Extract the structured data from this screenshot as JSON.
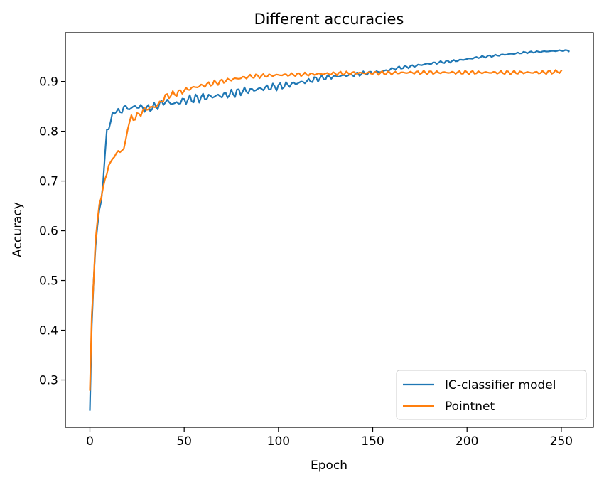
{
  "chart_data": {
    "type": "line",
    "title": "Different accuracies",
    "xlabel": "Epoch",
    "ylabel": "Accuracy",
    "xlim": [
      -13,
      267
    ],
    "ylim": [
      0.205,
      0.998
    ],
    "xticks": [
      0,
      50,
      100,
      150,
      200,
      250
    ],
    "yticks": [
      0.3,
      0.4,
      0.5,
      0.6,
      0.7,
      0.8,
      0.9
    ],
    "xtick_labels": [
      "0",
      "50",
      "100",
      "150",
      "200",
      "250"
    ],
    "ytick_labels": [
      "0.3",
      "0.4",
      "0.5",
      "0.6",
      "0.7",
      "0.8",
      "0.9"
    ],
    "grid": false,
    "legend_position": "lower-right",
    "series": [
      {
        "name": "IC-classifier model",
        "color": "#1f77b4",
        "anchors": [
          [
            0,
            0.24
          ],
          [
            1,
            0.41
          ],
          [
            2,
            0.5
          ],
          [
            3,
            0.57
          ],
          [
            4,
            0.61
          ],
          [
            5,
            0.64
          ],
          [
            6,
            0.66
          ],
          [
            7,
            0.7
          ],
          [
            8,
            0.75
          ],
          [
            9,
            0.8
          ],
          [
            10,
            0.81
          ],
          [
            12,
            0.83
          ],
          [
            14,
            0.845
          ],
          [
            16,
            0.835
          ],
          [
            18,
            0.85
          ],
          [
            20,
            0.845
          ],
          [
            25,
            0.85
          ],
          [
            30,
            0.845
          ],
          [
            35,
            0.85
          ],
          [
            40,
            0.86
          ],
          [
            45,
            0.855
          ],
          [
            50,
            0.862
          ],
          [
            55,
            0.865
          ],
          [
            60,
            0.868
          ],
          [
            65,
            0.87
          ],
          [
            70,
            0.872
          ],
          [
            75,
            0.875
          ],
          [
            80,
            0.88
          ],
          [
            85,
            0.882
          ],
          [
            90,
            0.885
          ],
          [
            95,
            0.888
          ],
          [
            100,
            0.89
          ],
          [
            105,
            0.893
          ],
          [
            110,
            0.897
          ],
          [
            115,
            0.9
          ],
          [
            120,
            0.905
          ],
          [
            125,
            0.908
          ],
          [
            130,
            0.91
          ],
          [
            135,
            0.912
          ],
          [
            140,
            0.914
          ],
          [
            145,
            0.916
          ],
          [
            150,
            0.918
          ],
          [
            155,
            0.92
          ],
          [
            160,
            0.925
          ],
          [
            165,
            0.928
          ],
          [
            170,
            0.93
          ],
          [
            175,
            0.933
          ],
          [
            180,
            0.936
          ],
          [
            185,
            0.938
          ],
          [
            190,
            0.94
          ],
          [
            195,
            0.942
          ],
          [
            200,
            0.945
          ],
          [
            205,
            0.948
          ],
          [
            210,
            0.95
          ],
          [
            215,
            0.952
          ],
          [
            220,
            0.954
          ],
          [
            225,
            0.956
          ],
          [
            230,
            0.958
          ],
          [
            235,
            0.959
          ],
          [
            240,
            0.96
          ],
          [
            245,
            0.961
          ],
          [
            250,
            0.962
          ],
          [
            254,
            0.962
          ]
        ],
        "noise_amp": [
          [
            0,
            0
          ],
          [
            12,
            0.008
          ],
          [
            60,
            0.01
          ],
          [
            100,
            0.008
          ],
          [
            150,
            0.004
          ],
          [
            200,
            0.0025
          ],
          [
            254,
            0.0015
          ]
        ],
        "x_max": 254
      },
      {
        "name": "Pointnet",
        "color": "#ff7f0e",
        "anchors": [
          [
            0,
            0.28
          ],
          [
            1,
            0.43
          ],
          [
            2,
            0.5
          ],
          [
            3,
            0.58
          ],
          [
            4,
            0.62
          ],
          [
            5,
            0.655
          ],
          [
            6,
            0.665
          ],
          [
            7,
            0.685
          ],
          [
            8,
            0.705
          ],
          [
            9,
            0.715
          ],
          [
            10,
            0.73
          ],
          [
            12,
            0.745
          ],
          [
            14,
            0.755
          ],
          [
            16,
            0.76
          ],
          [
            17,
            0.765
          ],
          [
            18,
            0.76
          ],
          [
            19,
            0.78
          ],
          [
            20,
            0.81
          ],
          [
            22,
            0.825
          ],
          [
            25,
            0.83
          ],
          [
            28,
            0.84
          ],
          [
            30,
            0.845
          ],
          [
            35,
            0.85
          ],
          [
            38,
            0.86
          ],
          [
            40,
            0.87
          ],
          [
            45,
            0.875
          ],
          [
            50,
            0.882
          ],
          [
            55,
            0.888
          ],
          [
            60,
            0.892
          ],
          [
            65,
            0.896
          ],
          [
            70,
            0.9
          ],
          [
            75,
            0.904
          ],
          [
            80,
            0.907
          ],
          [
            85,
            0.91
          ],
          [
            90,
            0.911
          ],
          [
            95,
            0.912
          ],
          [
            100,
            0.913
          ],
          [
            110,
            0.914
          ],
          [
            120,
            0.915
          ],
          [
            130,
            0.916
          ],
          [
            140,
            0.917
          ],
          [
            150,
            0.917
          ],
          [
            160,
            0.917
          ],
          [
            170,
            0.918
          ],
          [
            180,
            0.918
          ],
          [
            190,
            0.918
          ],
          [
            200,
            0.918
          ],
          [
            210,
            0.918
          ],
          [
            220,
            0.918
          ],
          [
            230,
            0.918
          ],
          [
            240,
            0.918
          ],
          [
            250,
            0.92
          ]
        ],
        "noise_amp": [
          [
            0,
            0
          ],
          [
            12,
            0.006
          ],
          [
            20,
            0.008
          ],
          [
            60,
            0.006
          ],
          [
            100,
            0.004
          ],
          [
            250,
            0.004
          ]
        ],
        "x_max": 250
      }
    ]
  }
}
